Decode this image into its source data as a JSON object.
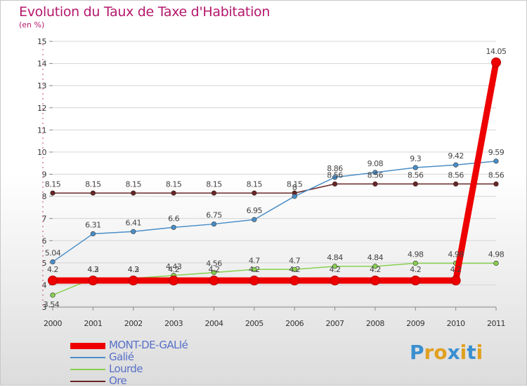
{
  "title": "Evolution du Taux de Taxe d'Habitation",
  "subtitle": "(en %)",
  "logo": {
    "letters": [
      "P",
      "r",
      "o",
      "x",
      "i",
      "t",
      "i"
    ],
    "colors": [
      "#3a8fd0",
      "#e0a020",
      "#e0a020",
      "#3a8fd0",
      "#e0a020",
      "#3a8fd0",
      "#e0a020"
    ]
  },
  "chart_data": {
    "type": "line",
    "x": [
      "2000",
      "2001",
      "2002",
      "2003",
      "2004",
      "2005",
      "2006",
      "2007",
      "2008",
      "2009",
      "2010",
      "2011"
    ],
    "ylim": [
      3,
      15
    ],
    "yticks": [
      "3",
      "4",
      "5",
      "6",
      "7",
      "8",
      "9",
      "10",
      "11",
      "12",
      "13",
      "14",
      "15"
    ],
    "grid": "horizontal",
    "legend_position": "bottom-left",
    "series": [
      {
        "name": "MONT-DE-GALIé",
        "color": "#ee0000",
        "values": [
          4.2,
          4.2,
          4.2,
          4.2,
          4.2,
          4.2,
          4.2,
          4.2,
          4.2,
          4.2,
          4.2,
          14.05
        ],
        "labels": [
          "4.2",
          "4.2",
          "4.2",
          "4.2",
          "4.2",
          "4.2",
          "4.2",
          "4.2",
          "4.2",
          "4.2",
          "4.2",
          "14.05"
        ]
      },
      {
        "name": "Galié",
        "color": "#4a8ec8",
        "values": [
          5.04,
          6.31,
          6.41,
          6.6,
          6.75,
          6.95,
          8.0,
          8.86,
          9.08,
          9.3,
          9.42,
          9.59
        ],
        "labels": [
          "5.04",
          "6.31",
          "6.41",
          "6.6",
          "6.75",
          "6.95",
          "8",
          "8.86",
          "9.08",
          "9.3",
          "9.42",
          "9.59"
        ]
      },
      {
        "name": "Lourde",
        "color": "#88d050",
        "values": [
          3.54,
          4.3,
          4.3,
          4.43,
          4.56,
          4.7,
          4.7,
          4.84,
          4.84,
          4.98,
          4.98,
          4.98
        ],
        "labels": [
          "3.54",
          "4.3",
          "4.3",
          "4.43",
          "4.56",
          "4.7",
          "4.7",
          "4.84",
          "4.84",
          "4.98",
          "4.98",
          "4.98"
        ]
      },
      {
        "name": "Ore",
        "color": "#6a2424",
        "values": [
          8.15,
          8.15,
          8.15,
          8.15,
          8.15,
          8.15,
          8.15,
          8.56,
          8.56,
          8.56,
          8.56,
          8.56
        ],
        "labels": [
          "8.15",
          "8.15",
          "8.15",
          "8.15",
          "8.15",
          "8.15",
          "8.15",
          "8.56",
          "8.56",
          "8.56",
          "8.56",
          "8.56"
        ]
      }
    ]
  }
}
